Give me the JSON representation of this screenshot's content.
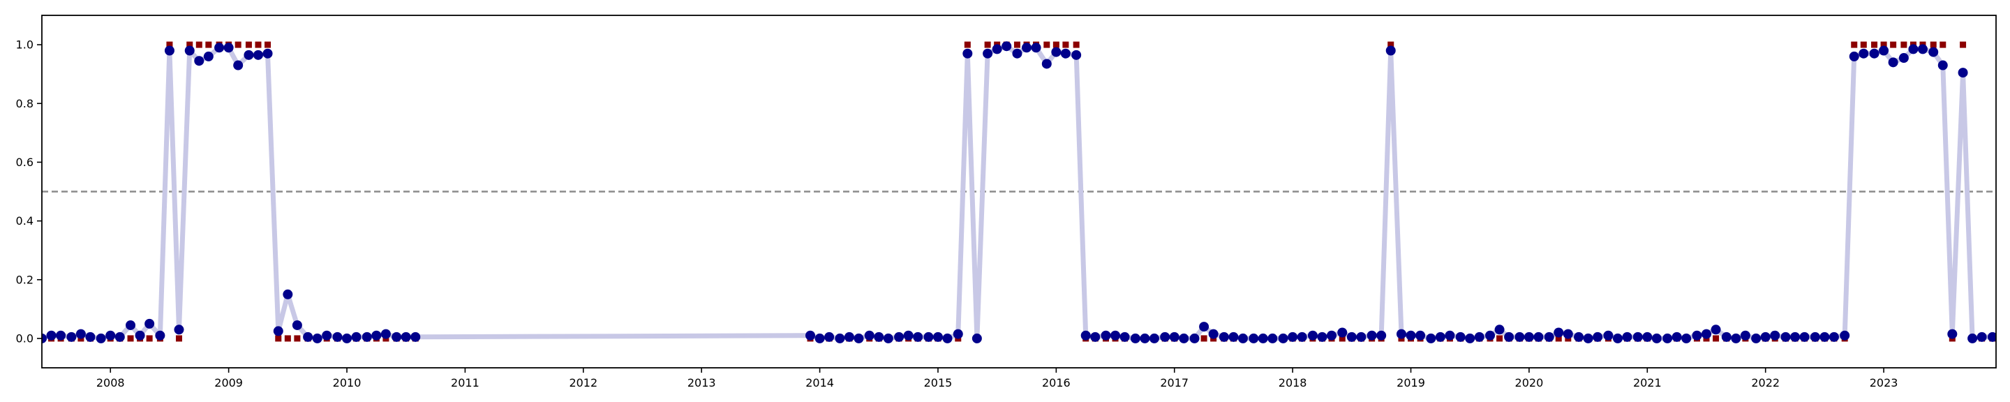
{
  "chart_data": {
    "type": "line",
    "title": "",
    "xlabel": "",
    "ylabel": "",
    "xlim": [
      2007.42,
      2023.95
    ],
    "ylim": [
      -0.1,
      1.1
    ],
    "grid": false,
    "legend": "none",
    "x_ticks": [
      2008,
      2009,
      2010,
      2011,
      2012,
      2013,
      2014,
      2015,
      2016,
      2017,
      2018,
      2019,
      2020,
      2021,
      2022,
      2023
    ],
    "x_tick_labels": [
      "2008",
      "2009",
      "2010",
      "2011",
      "2012",
      "2013",
      "2014",
      "2015",
      "2016",
      "2017",
      "2018",
      "2019",
      "2020",
      "2021",
      "2022",
      "2023"
    ],
    "y_ticks": [
      0.0,
      0.2,
      0.4,
      0.6,
      0.8,
      1.0
    ],
    "y_tick_labels": [
      "0.0",
      "0.2",
      "0.4",
      "0.6",
      "0.8",
      "1.0"
    ],
    "threshold": 0.5,
    "colors": {
      "line": "#c8c8e6",
      "probability": "#00008b",
      "label": "#8b0000",
      "threshold": "#8c8c8c",
      "axes": "#000000"
    },
    "x": [
      2007.42,
      2007.5,
      2007.58,
      2007.67,
      2007.75,
      2007.83,
      2007.92,
      2008.0,
      2008.08,
      2008.17,
      2008.25,
      2008.33,
      2008.42,
      2008.5,
      2008.58,
      2008.67,
      2008.75,
      2008.83,
      2008.92,
      2009.0,
      2009.08,
      2009.17,
      2009.25,
      2009.33,
      2009.42,
      2009.5,
      2009.58,
      2009.67,
      2009.75,
      2009.83,
      2009.92,
      2010.0,
      2010.08,
      2010.17,
      2010.25,
      2010.33,
      2010.42,
      2010.5,
      2010.58,
      2013.92,
      2014.0,
      2014.08,
      2014.17,
      2014.25,
      2014.33,
      2014.42,
      2014.5,
      2014.58,
      2014.67,
      2014.75,
      2014.83,
      2014.92,
      2015.0,
      2015.08,
      2015.17,
      2015.25,
      2015.33,
      2015.42,
      2015.5,
      2015.58,
      2015.67,
      2015.75,
      2015.83,
      2015.92,
      2016.0,
      2016.08,
      2016.17,
      2016.25,
      2016.33,
      2016.42,
      2016.5,
      2016.58,
      2016.67,
      2016.75,
      2016.83,
      2016.92,
      2017.0,
      2017.08,
      2017.17,
      2017.25,
      2017.33,
      2017.42,
      2017.5,
      2017.58,
      2017.67,
      2017.75,
      2017.83,
      2017.92,
      2018.0,
      2018.08,
      2018.17,
      2018.25,
      2018.33,
      2018.42,
      2018.5,
      2018.58,
      2018.67,
      2018.75,
      2018.83,
      2018.92,
      2019.0,
      2019.08,
      2019.17,
      2019.25,
      2019.33,
      2019.42,
      2019.5,
      2019.58,
      2019.67,
      2019.75,
      2019.83,
      2019.92,
      2020.0,
      2020.08,
      2020.17,
      2020.25,
      2020.33,
      2020.42,
      2020.5,
      2020.58,
      2020.67,
      2020.75,
      2020.83,
      2020.92,
      2021.0,
      2021.08,
      2021.17,
      2021.25,
      2021.33,
      2021.42,
      2021.5,
      2021.58,
      2021.67,
      2021.75,
      2021.83,
      2021.92,
      2022.0,
      2022.08,
      2022.17,
      2022.25,
      2022.33,
      2022.42,
      2022.5,
      2022.58,
      2022.67,
      2022.75,
      2022.83,
      2022.92,
      2023.0,
      2023.08,
      2023.17,
      2023.25,
      2023.33,
      2023.42,
      2023.5,
      2023.58,
      2023.67,
      2023.75,
      2023.83,
      2023.92,
      2024.0
    ],
    "series": [
      {
        "values": [
          0.0,
          0.01,
          0.01,
          0.005,
          0.015,
          0.005,
          0.0,
          0.01,
          0.005,
          0.045,
          0.01,
          0.05,
          0.01,
          0.98,
          0.03,
          0.98,
          0.945,
          0.96,
          0.99,
          0.99,
          0.93,
          0.965,
          0.965,
          0.97,
          0.025,
          0.15,
          0.045,
          0.005,
          0.0,
          0.01,
          0.005,
          0.0,
          0.005,
          0.005,
          0.01,
          0.015,
          0.005,
          0.005,
          0.005,
          0.01,
          0.0,
          0.005,
          0.0,
          0.005,
          0.0,
          0.01,
          0.005,
          0.0,
          0.005,
          0.01,
          0.005,
          0.005,
          0.005,
          0.0,
          0.015,
          0.97,
          0.0,
          0.97,
          0.985,
          0.995,
          0.97,
          0.99,
          0.99,
          0.935,
          0.975,
          0.97,
          0.965,
          0.01,
          0.005,
          0.01,
          0.01,
          0.005,
          0.0,
          0.0,
          0.0,
          0.005,
          0.005,
          0.0,
          0.0,
          0.04,
          0.015,
          0.005,
          0.005,
          0.0,
          0.0,
          0.0,
          0.0,
          0.0,
          0.005,
          0.005,
          0.01,
          0.005,
          0.01,
          0.02,
          0.005,
          0.005,
          0.01,
          0.01,
          0.98,
          0.015,
          0.01,
          0.01,
          0.0,
          0.005,
          0.01,
          0.005,
          0.0,
          0.005,
          0.01,
          0.03,
          0.005,
          0.005,
          0.005,
          0.005,
          0.005,
          0.02,
          0.015,
          0.005,
          0.0,
          0.005,
          0.01,
          0.0,
          0.005,
          0.005,
          0.005,
          0.0,
          0.0,
          0.005,
          0.0,
          0.01,
          0.015,
          0.03,
          0.005,
          0.0,
          0.01,
          0.0,
          0.005,
          0.01,
          0.005,
          0.005,
          0.005,
          0.005,
          0.005,
          0.005,
          0.01,
          0.96,
          0.97,
          0.97,
          0.98,
          0.94,
          0.955,
          0.985,
          0.985,
          0.975,
          0.93,
          0.015,
          0.905,
          0.0,
          0.005,
          0.005,
          0.0
        ]
      },
      {
        "values": [
          0,
          0,
          0,
          0,
          0,
          0,
          0,
          0,
          0,
          0,
          0,
          0,
          0,
          1,
          0,
          1,
          1,
          1,
          1,
          1,
          1,
          1,
          1,
          1,
          0,
          0,
          0,
          0,
          0,
          0,
          0,
          0,
          0,
          0,
          0,
          0,
          0,
          0,
          0,
          0,
          0,
          0,
          0,
          0,
          0,
          0,
          0,
          0,
          0,
          0,
          0,
          0,
          0,
          0,
          0,
          1,
          0,
          1,
          1,
          1,
          1,
          1,
          1,
          1,
          1,
          1,
          1,
          0,
          0,
          0,
          0,
          0,
          0,
          0,
          0,
          0,
          0,
          0,
          0,
          0,
          0,
          0,
          0,
          0,
          0,
          0,
          0,
          0,
          0,
          0,
          0,
          0,
          0,
          0,
          0,
          0,
          0,
          0,
          1,
          0,
          0,
          0,
          0,
          0,
          0,
          0,
          0,
          0,
          0,
          0,
          0,
          0,
          0,
          0,
          0,
          0,
          0,
          0,
          0,
          0,
          0,
          0,
          0,
          0,
          0,
          0,
          0,
          0,
          0,
          0,
          0,
          0,
          0,
          0,
          0,
          0,
          0,
          0,
          0,
          0,
          0,
          0,
          0,
          0,
          0,
          1,
          1,
          1,
          1,
          1,
          1,
          1,
          1,
          1,
          1,
          0,
          1,
          0,
          0,
          0,
          0
        ]
      }
    ]
  }
}
